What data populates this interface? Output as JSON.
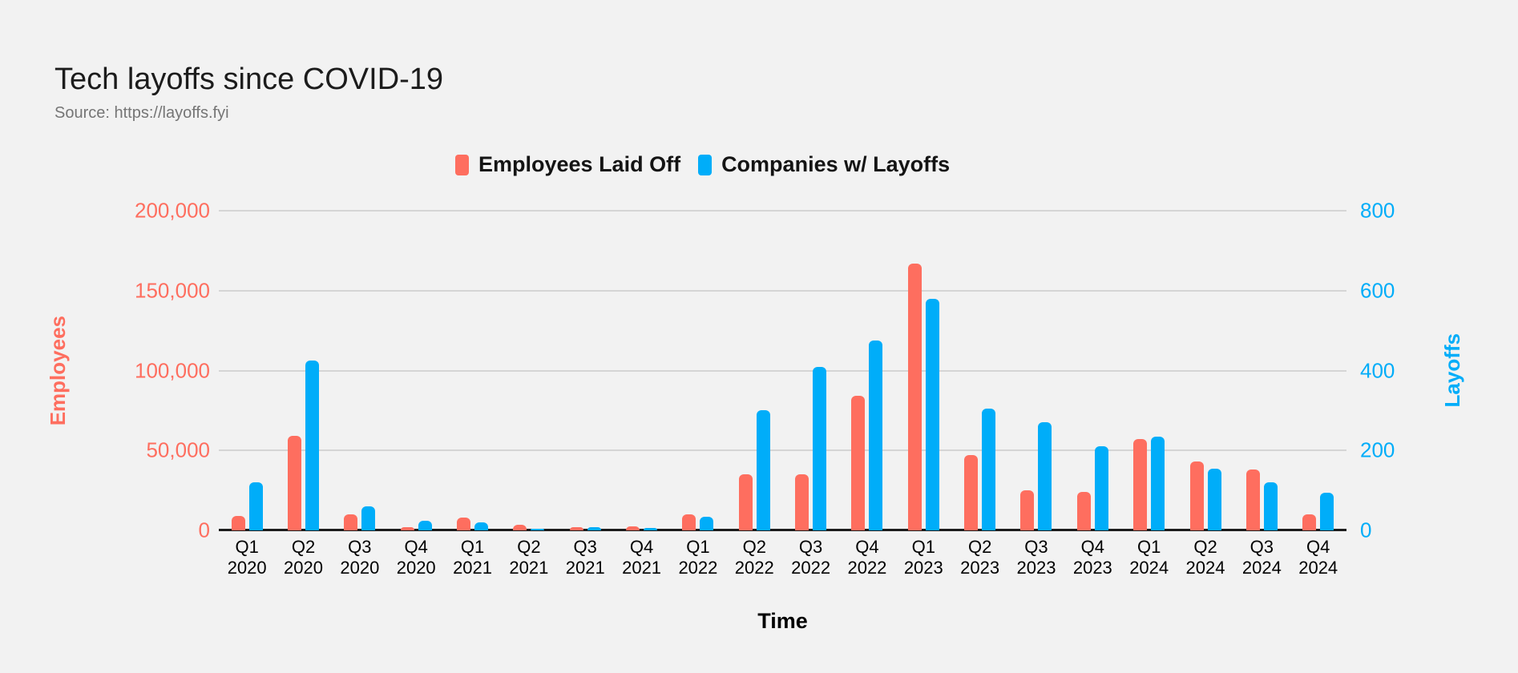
{
  "header": {
    "title": "Tech layoffs since COVID-19",
    "source": "Source: https://layoffs.fyi"
  },
  "legend": {
    "items": [
      {
        "label": "Employees Laid Off",
        "color": "#FE6E5F"
      },
      {
        "label": "Companies w/ Layoffs",
        "color": "#00ADF9"
      }
    ]
  },
  "colors": {
    "background": "#F2F2F2",
    "gridline": "#D5D5D5",
    "baseline": "#1C1C1C",
    "employees": "#FE6E5F",
    "companies": "#00ADF9"
  },
  "chart_data": {
    "type": "bar",
    "title": "Tech layoffs since COVID-19",
    "subtitle": "Source: https://layoffs.fyi",
    "xlabel": "Time",
    "grid": true,
    "legend_position": "top",
    "categories": [
      "Q1 2020",
      "Q2 2020",
      "Q3 2020",
      "Q4 2020",
      "Q1 2021",
      "Q2 2021",
      "Q3 2021",
      "Q4 2021",
      "Q1 2022",
      "Q2 2022",
      "Q3 2022",
      "Q4 2022",
      "Q1 2023",
      "Q2 2023",
      "Q3 2023",
      "Q4 2023",
      "Q1 2024",
      "Q2 2024",
      "Q3 2024",
      "Q4 2024"
    ],
    "series": [
      {
        "name": "Employees Laid Off",
        "axis": "left",
        "color": "#FE6E5F",
        "values": [
          9000,
          59000,
          10000,
          2000,
          8000,
          3500,
          2000,
          2500,
          10000,
          35000,
          35000,
          84000,
          167000,
          47000,
          25000,
          24000,
          57000,
          43000,
          38000,
          10000
        ]
      },
      {
        "name": "Companies w/ Layoffs",
        "axis": "right",
        "color": "#00ADF9",
        "values": [
          120,
          425,
          60,
          25,
          20,
          5,
          8,
          6,
          35,
          300,
          410,
          475,
          580,
          305,
          270,
          210,
          235,
          155,
          120,
          95
        ]
      }
    ],
    "left_axis": {
      "title": "Employees",
      "max": 200000,
      "ticks": [
        {
          "value": 0,
          "label": "0"
        },
        {
          "value": 50000,
          "label": "50,000"
        },
        {
          "value": 100000,
          "label": "100,000"
        },
        {
          "value": 150000,
          "label": "150,000"
        },
        {
          "value": 200000,
          "label": "200,000"
        }
      ]
    },
    "right_axis": {
      "title": "Layoffs",
      "max": 800,
      "ticks": [
        {
          "value": 0,
          "label": "0"
        },
        {
          "value": 200,
          "label": "200"
        },
        {
          "value": 400,
          "label": "400"
        },
        {
          "value": 600,
          "label": "600"
        },
        {
          "value": 800,
          "label": "800"
        }
      ]
    }
  }
}
